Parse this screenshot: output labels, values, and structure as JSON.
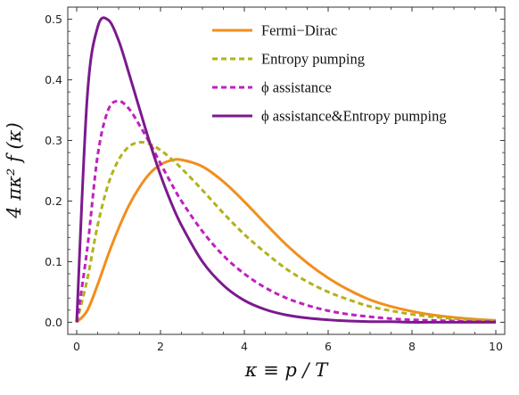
{
  "chart_data": {
    "type": "line",
    "xlabel": "κ ≡ p / T",
    "ylabel": "4 πκ² f (κ)",
    "xlim": [
      0,
      10
    ],
    "ylim": [
      -0.02,
      0.52
    ],
    "x_ticks": [
      0,
      2,
      4,
      6,
      8,
      10
    ],
    "y_ticks": [
      0.0,
      0.1,
      0.2,
      0.3,
      0.4,
      0.5
    ],
    "x_tick_labels": [
      "0",
      "2",
      "4",
      "6",
      "8",
      "10"
    ],
    "y_tick_labels": [
      "0.0",
      "0.1",
      "0.2",
      "0.3",
      "0.4",
      "0.5"
    ],
    "grid": false,
    "legend_position": "top-right",
    "x": [
      0,
      0.25,
      0.5,
      0.75,
      1,
      1.25,
      1.5,
      1.75,
      2,
      2.25,
      2.5,
      3,
      3.5,
      4,
      4.5,
      5,
      5.5,
      6,
      6.5,
      7,
      7.5,
      8,
      8.5,
      9,
      9.5,
      10
    ],
    "series": [
      {
        "name": "Fermi−Dirac",
        "color": "#f28e1c",
        "dash": "solid",
        "values": [
          0,
          0.019,
          0.062,
          0.111,
          0.155,
          0.193,
          0.223,
          0.246,
          0.26,
          0.267,
          0.268,
          0.257,
          0.232,
          0.199,
          0.163,
          0.128,
          0.098,
          0.073,
          0.053,
          0.037,
          0.026,
          0.018,
          0.012,
          0.008,
          0.005,
          0.003
        ]
      },
      {
        "name": "Entropy pumping",
        "color": "#b2b21a",
        "dash": "dashed",
        "values": [
          0,
          0.07,
          0.16,
          0.227,
          0.268,
          0.29,
          0.297,
          0.294,
          0.284,
          0.27,
          0.254,
          0.218,
          0.18,
          0.145,
          0.115,
          0.088,
          0.067,
          0.05,
          0.037,
          0.026,
          0.019,
          0.013,
          0.009,
          0.006,
          0.004,
          0.003
        ]
      },
      {
        "name": "ϕ assistance",
        "color": "#c020c0",
        "dash": "dashed",
        "values": [
          0,
          0.12,
          0.275,
          0.35,
          0.365,
          0.352,
          0.325,
          0.295,
          0.262,
          0.23,
          0.2,
          0.15,
          0.11,
          0.08,
          0.057,
          0.04,
          0.028,
          0.019,
          0.013,
          0.009,
          0.006,
          0.004,
          0.003,
          0.002,
          0.001,
          0.001
        ]
      },
      {
        "name": "ϕ assistance&Entropy pumping",
        "color": "#7b1a8e",
        "dash": "solid",
        "values": [
          0,
          0.37,
          0.487,
          0.499,
          0.465,
          0.41,
          0.352,
          0.295,
          0.243,
          0.198,
          0.16,
          0.1,
          0.061,
          0.036,
          0.021,
          0.012,
          0.007,
          0.004,
          0.002,
          0.001,
          0.001,
          0,
          0,
          0,
          0,
          0
        ]
      }
    ]
  }
}
